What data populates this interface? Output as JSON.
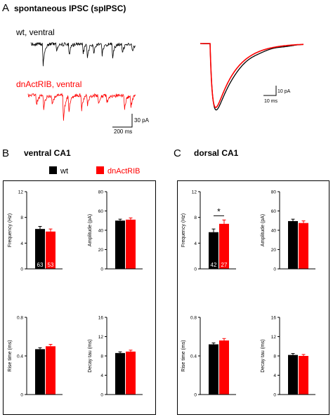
{
  "panel_a": {
    "letter": "A",
    "title": "spontaneous IPSC (spIPSC)",
    "wt_label": "wt, ventral",
    "dn_label": "dnActRIB, ventral",
    "scale_left": {
      "y_label": "30 pA",
      "x_label": "200 ms"
    },
    "scale_right": {
      "y_label": "10 pA",
      "x_label": "10 ms"
    }
  },
  "panel_b": {
    "letter": "B",
    "title": "ventral CA1"
  },
  "panel_c": {
    "letter": "C",
    "title": "dorsal CA1"
  },
  "legend": {
    "wt": "wt",
    "dn": "dnActRIB"
  },
  "colors": {
    "wt": "#000000",
    "dn": "#ff0000"
  },
  "chart_data": [
    {
      "type": "bar",
      "panel": "B",
      "ylabel": "Frequency (Hz)",
      "ylim": [
        0,
        12
      ],
      "ticks": [
        0,
        4,
        8,
        12
      ],
      "categories": [
        "wt",
        "dnActRIB"
      ],
      "values": [
        6.2,
        5.8
      ],
      "errors": [
        0.4,
        0.4
      ],
      "n_labels": [
        "63",
        "53"
      ]
    },
    {
      "type": "bar",
      "panel": "B",
      "ylabel": "Amplitude (pA)",
      "ylim": [
        0,
        80
      ],
      "ticks": [
        0,
        20,
        40,
        60,
        80
      ],
      "categories": [
        "wt",
        "dnActRIB"
      ],
      "values": [
        50,
        51
      ],
      "errors": [
        1.5,
        1.8
      ]
    },
    {
      "type": "bar",
      "panel": "B",
      "ylabel": "Rise time (ms)",
      "ylim": [
        0,
        0.8
      ],
      "ticks": [
        0.0,
        0.4,
        0.8
      ],
      "categories": [
        "wt",
        "dnActRIB"
      ],
      "values": [
        0.47,
        0.5
      ],
      "errors": [
        0.015,
        0.02
      ]
    },
    {
      "type": "bar",
      "panel": "B",
      "ylabel": "Decay tau (ms)",
      "ylim": [
        0,
        16
      ],
      "ticks": [
        0,
        4,
        8,
        12,
        16
      ],
      "categories": [
        "wt",
        "dnActRIB"
      ],
      "values": [
        8.6,
        8.9
      ],
      "errors": [
        0.25,
        0.3
      ]
    },
    {
      "type": "bar",
      "panel": "C",
      "ylabel": "Frequency (Hz)",
      "ylim": [
        0,
        12
      ],
      "ticks": [
        0,
        4,
        8,
        12
      ],
      "categories": [
        "wt",
        "dnActRIB"
      ],
      "values": [
        5.7,
        7.0
      ],
      "errors": [
        0.5,
        0.6
      ],
      "n_labels": [
        "42",
        "27"
      ],
      "significance": "*"
    },
    {
      "type": "bar",
      "panel": "C",
      "ylabel": "Amplitude (pA)",
      "ylim": [
        0,
        80
      ],
      "ticks": [
        0,
        20,
        40,
        60,
        80
      ],
      "categories": [
        "wt",
        "dnActRIB"
      ],
      "values": [
        49.5,
        47.5
      ],
      "errors": [
        2,
        2.2
      ]
    },
    {
      "type": "bar",
      "panel": "C",
      "ylabel": "Rise time (ms)",
      "ylim": [
        0,
        0.8
      ],
      "ticks": [
        0.0,
        0.4,
        0.8
      ],
      "categories": [
        "wt",
        "dnActRIB"
      ],
      "values": [
        0.52,
        0.56
      ],
      "errors": [
        0.015,
        0.02
      ]
    },
    {
      "type": "bar",
      "panel": "C",
      "ylabel": "Decay tau (ms)",
      "ylim": [
        0,
        16
      ],
      "ticks": [
        0,
        4,
        8,
        12,
        16
      ],
      "categories": [
        "wt",
        "dnActRIB"
      ],
      "values": [
        8.2,
        8.0
      ],
      "errors": [
        0.3,
        0.3
      ]
    }
  ]
}
